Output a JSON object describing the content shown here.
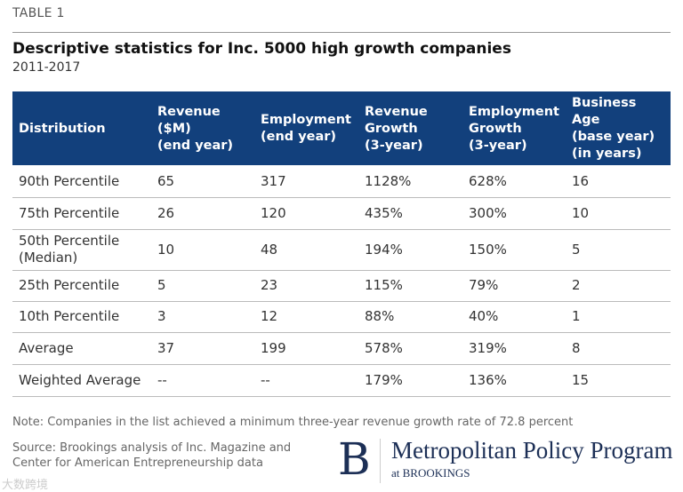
{
  "label": "TABLE 1",
  "title": "Descriptive statistics for Inc. 5000 high growth companies",
  "subtitle": "2011-2017",
  "headers": [
    [
      "Distribution"
    ],
    [
      "Revenue",
      "($M)",
      "(end year)"
    ],
    [
      "Employment",
      "(end year)"
    ],
    [
      "Revenue",
      "Growth",
      "(3-year)"
    ],
    [
      "Employment",
      "Growth",
      "(3-year)"
    ],
    [
      "Business",
      "Age",
      "(base year)",
      "(in years)"
    ]
  ],
  "rows": [
    [
      "90th Percentile",
      "65",
      "317",
      "1128%",
      "628%",
      "16"
    ],
    [
      "75th Percentile",
      "26",
      "120",
      "435%",
      "300%",
      "10"
    ],
    [
      "50th Percentile\n(Median)",
      "10",
      "48",
      "194%",
      "150%",
      "5"
    ],
    [
      "25th Percentile",
      "5",
      "23",
      "115%",
      "79%",
      "2"
    ],
    [
      "10th Percentile",
      "3",
      "12",
      "88%",
      "40%",
      "1"
    ],
    [
      "Average",
      "37",
      "199",
      "578%",
      "319%",
      "8"
    ],
    [
      "Weighted Average",
      "--",
      "--",
      "179%",
      "136%",
      "15"
    ]
  ],
  "note": "Note: Companies in the list achieved a minimum three-year revenue growth rate of 72.8 percent",
  "source": "Source: Brookings analysis of Inc. Magazine and Center for American Entrepreneurship data",
  "logo": {
    "letter": "B",
    "name": "Metropolitan Policy Program",
    "sub": "at BROOKINGS"
  },
  "watermark": "大数跨境",
  "colors": {
    "header": "#12407c"
  }
}
